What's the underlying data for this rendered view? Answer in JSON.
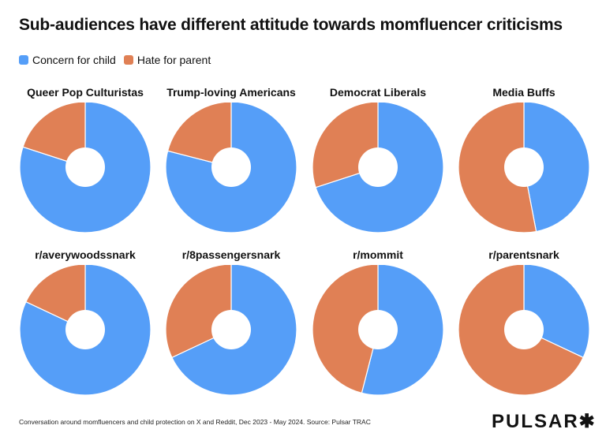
{
  "title": "Sub-audiences have different attitude towards momfluencer criticisms",
  "footer": "Conversation around momfluencers and child protection on X and Reddit, Dec 2023 - May 2024. Source: Pulsar TRAC",
  "logo": "PULSAR✱",
  "colors": {
    "concern": "#559ef8",
    "hate": "#e08055"
  },
  "chart_data": {
    "type": "pie",
    "variant": "donut",
    "legend_position": "top-left",
    "series_names": [
      "Concern for child",
      "Hate for parent"
    ],
    "charts": [
      {
        "title": "Queer Pop Culturistas",
        "values": [
          80,
          20
        ]
      },
      {
        "title": "Trump-loving Americans",
        "values": [
          79,
          21
        ]
      },
      {
        "title": "Democrat Liberals",
        "values": [
          70,
          30
        ]
      },
      {
        "title": "Media Buffs",
        "values": [
          47,
          53
        ]
      },
      {
        "title": "r/averywoodssnark",
        "values": [
          82,
          18
        ]
      },
      {
        "title": "r/8passengersnark",
        "values": [
          68,
          32
        ]
      },
      {
        "title": "r/mommit",
        "values": [
          54,
          46
        ]
      },
      {
        "title": "r/parentsnark",
        "values": [
          32,
          68
        ]
      }
    ]
  }
}
